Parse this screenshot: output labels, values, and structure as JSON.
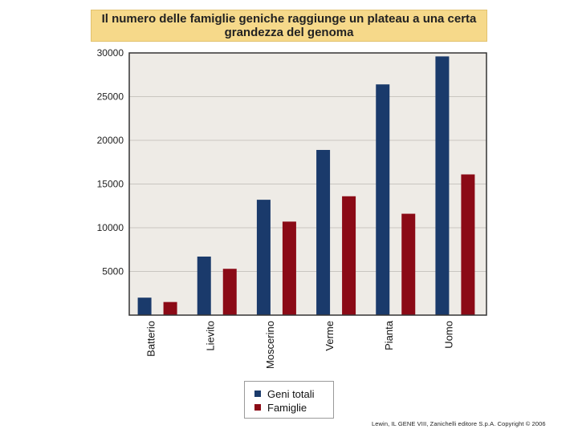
{
  "colors": {
    "geni_totali": "#1a3a6b",
    "famiglie": "#8b0a16",
    "plot_background": "#eeebe6",
    "title_background": "#f6d98a"
  },
  "chart_data": {
    "type": "bar",
    "title_line1": "Il numero delle famiglie geniche raggiunge un plateau a una certa",
    "title_line2": "grandezza del genoma",
    "categories": [
      "Batterio",
      "Lievito",
      "Moscerino",
      "Verme",
      "Pianta",
      "Uomo"
    ],
    "series": [
      {
        "name": "Geni totali",
        "values": [
          2000,
          6700,
          13200,
          18900,
          26400,
          29600
        ]
      },
      {
        "name": "Famiglie",
        "values": [
          1500,
          5300,
          10700,
          13600,
          11600,
          16100
        ]
      }
    ],
    "yticks": [
      "30000",
      "25000",
      "20000",
      "15000",
      "10000",
      "5000"
    ],
    "ylim": [
      0,
      30000
    ],
    "grid": true,
    "legend_position": "bottom-center"
  },
  "credit": "Lewin, IL GENE VIII,  Zanichelli editore S.p.A.  Copyright © 2006"
}
